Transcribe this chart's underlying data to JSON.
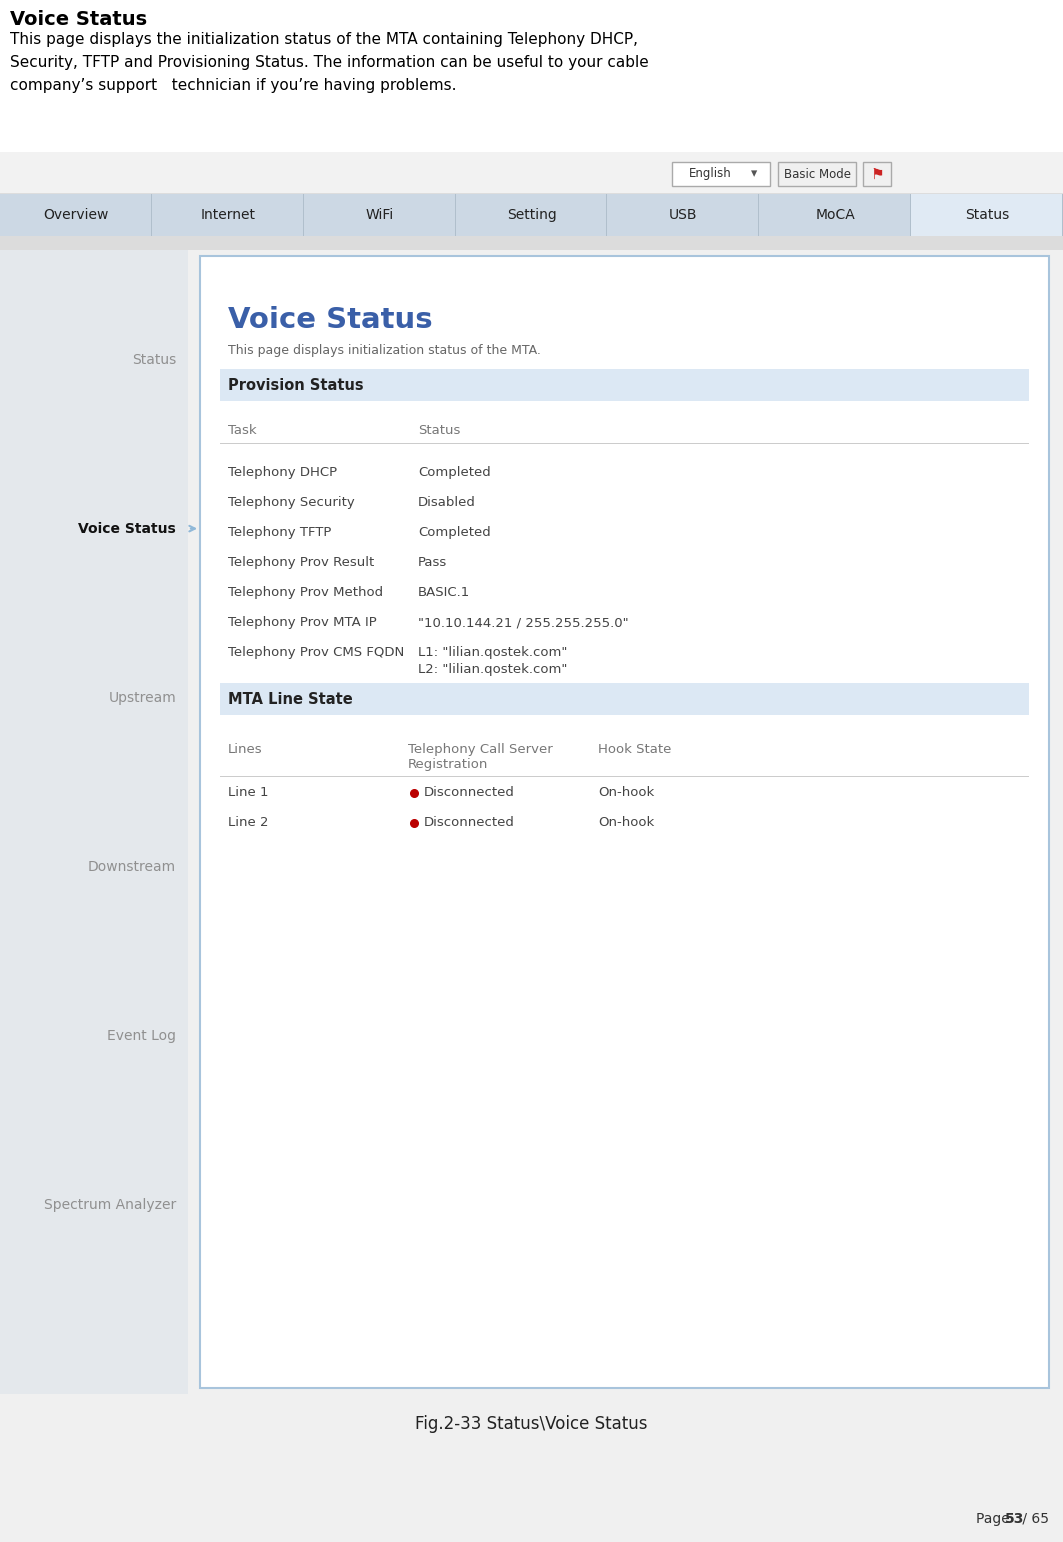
{
  "page_bg": "#f0f0f0",
  "top_white_bg": "#ffffff",
  "title_bold": "Voice Status",
  "desc_line1": "This page displays the initialization status of the MTA containing Telephony DHCP,",
  "desc_line2": "Security, TFTP and Provisioning Status. The information can be useful to your cable",
  "desc_line3": "company’s support   technician if you’re having problems.",
  "nav_tabs": [
    "Overview",
    "Internet",
    "WiFi",
    "Setting",
    "USB",
    "MoCA",
    "Status"
  ],
  "active_tab": "Status",
  "nav_bg": "#c8d8e8",
  "nav_tab_bg": "#ccd8e4",
  "nav_active_bg": "#e0eaf4",
  "nav_divider": "#b0bfcc",
  "left_menu": [
    "Status",
    "Voice Status",
    "Upstream",
    "Downstream",
    "Event Log",
    "Spectrum Analyzer"
  ],
  "left_menu_active": "Voice Status",
  "left_panel_bg": "#e4e8ec",
  "arrow_color": "#90b8d8",
  "page_title": "Voice Status",
  "page_title_color": "#3a5fa8",
  "page_subtitle": "This page displays initialization status of the MTA.",
  "section1_title": "Provision Status",
  "section_bg": "#dce8f4",
  "provision_headers": [
    "Task",
    "Status"
  ],
  "provision_rows": [
    [
      "Telephony DHCP",
      "Completed"
    ],
    [
      "Telephony Security",
      "Disabled"
    ],
    [
      "Telephony TFTP",
      "Completed"
    ],
    [
      "Telephony Prov Result",
      "Pass"
    ],
    [
      "Telephony Prov Method",
      "BASIC.1"
    ],
    [
      "Telephony Prov MTA IP",
      "\"10.10.144.21 / 255.255.255.0\""
    ],
    [
      "Telephony Prov CMS FQDN",
      "L1: \"lilian.qostek.com\"\nL2: \"lilian.qostek.com\""
    ]
  ],
  "section2_title": "MTA Line State",
  "mta_headers": [
    "Lines",
    "Telephony Call Server\nRegistration",
    "Hook State"
  ],
  "mta_rows": [
    [
      "Line 1",
      "Disconnected",
      "On-hook"
    ],
    [
      "Line 2",
      "Disconnected",
      "On-hook"
    ]
  ],
  "dot_color": "#bb0000",
  "divider_color": "#cccccc",
  "caption": "Fig.2-33 Status\\Voice Status",
  "page_num_pre": "Page ",
  "page_num_bold": "53",
  "page_num_suf": " / 65",
  "content_bg": "#ffffff",
  "content_border": "#a8c4dc",
  "english_btn": "English",
  "basic_mode_btn": "Basic Mode",
  "header_bar_bg": "#f2f2f2",
  "header_bar_border": "#dddddd"
}
